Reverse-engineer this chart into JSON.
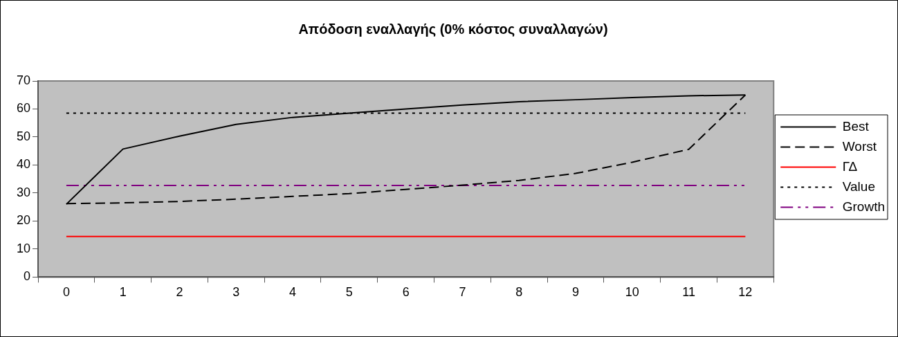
{
  "chart_data": {
    "type": "line",
    "title": "Απόδοση εναλλαγής (0% κόστος συναλλαγών)",
    "categories": [
      "0",
      "1",
      "2",
      "3",
      "4",
      "5",
      "6",
      "7",
      "8",
      "9",
      "10",
      "11",
      "12"
    ],
    "series": [
      {
        "name": "Best",
        "color": "#000000",
        "line_style": "solid",
        "values": [
          26,
          45.7,
          50.3,
          54.5,
          57,
          58.5,
          60,
          61.4,
          62.6,
          63.3,
          64.1,
          64.7,
          65
        ]
      },
      {
        "name": "Worst",
        "color": "#000000",
        "line_style": "dashed",
        "values": [
          26.2,
          26.5,
          27,
          27.8,
          28.8,
          29.8,
          31.3,
          32.8,
          34.5,
          37,
          41,
          45.6,
          65
        ]
      },
      {
        "name": "ΓΔ",
        "color": "#ff0000",
        "line_style": "solid",
        "values": [
          14.5,
          14.5,
          14.5,
          14.5,
          14.5,
          14.5,
          14.5,
          14.5,
          14.5,
          14.5,
          14.5,
          14.5,
          14.5
        ]
      },
      {
        "name": "Value",
        "color": "#000000",
        "line_style": "dotted",
        "values": [
          58.5,
          58.5,
          58.5,
          58.5,
          58.5,
          58.5,
          58.5,
          58.5,
          58.5,
          58.5,
          58.5,
          58.5,
          58.5
        ]
      },
      {
        "name": "Growth",
        "color": "#800080",
        "line_style": "dashdot",
        "values": [
          32.7,
          32.7,
          32.7,
          32.7,
          32.7,
          32.7,
          32.7,
          32.7,
          32.7,
          32.7,
          32.7,
          32.7,
          32.7
        ]
      }
    ],
    "ylim": [
      0,
      70
    ],
    "yticks": [
      0,
      10,
      20,
      30,
      40,
      50,
      60,
      70
    ],
    "grid": false,
    "legend": "right",
    "marker": "none"
  }
}
